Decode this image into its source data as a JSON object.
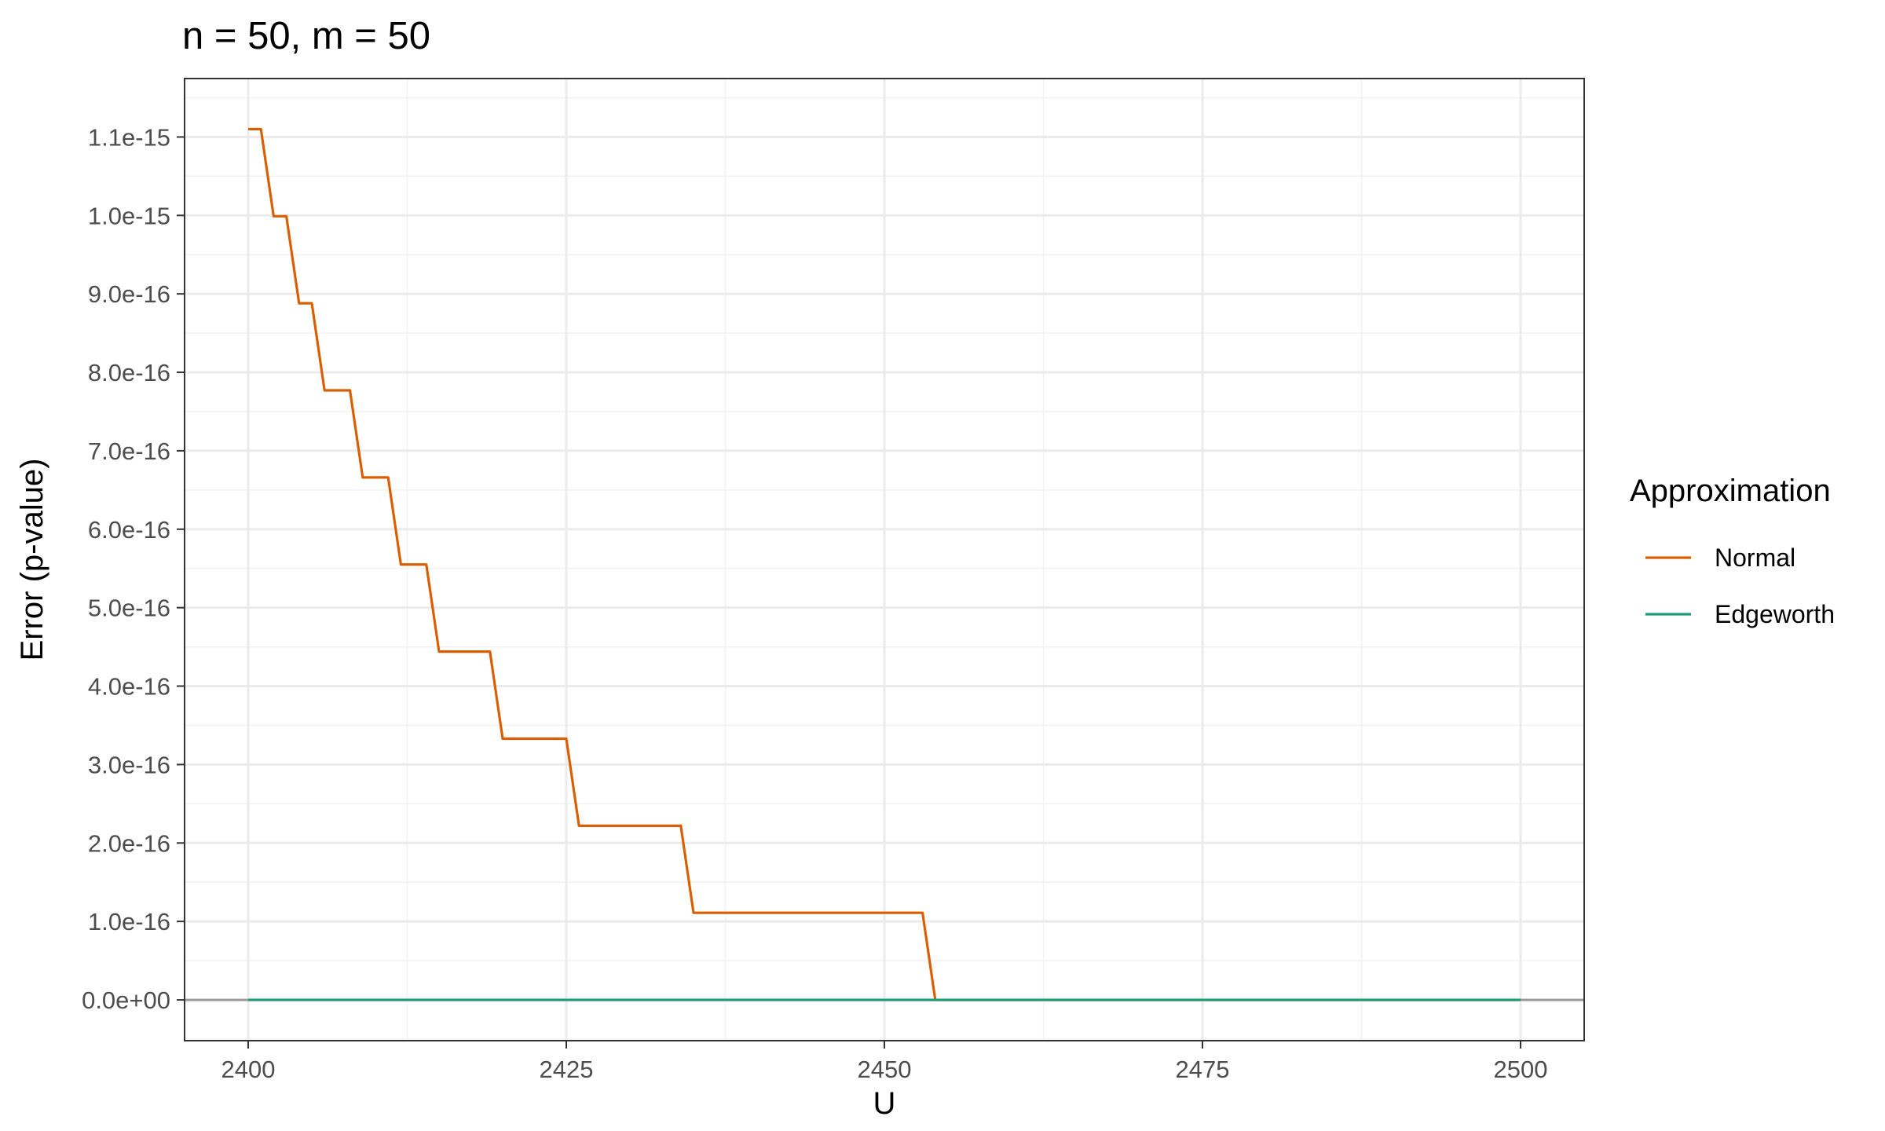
{
  "chart_data": {
    "type": "line",
    "title": "n = 50, m = 50",
    "xlabel": "U",
    "ylabel": "Error (p-value)",
    "xlim": [
      2395,
      2505
    ],
    "ylim": [
      -5.2e-17,
      1.1745e-15
    ],
    "x_ticks": [
      2400,
      2425,
      2450,
      2475,
      2500
    ],
    "x_tick_labels": [
      "2400",
      "2425",
      "2450",
      "2475",
      "2500"
    ],
    "y_ticks": [
      0,
      1e-16,
      2e-16,
      3e-16,
      4e-16,
      5e-16,
      6e-16,
      7e-16,
      8e-16,
      9e-16,
      1e-15,
      1.1e-15
    ],
    "y_tick_labels": [
      "0.0e+00",
      "1.0e-16",
      "2.0e-16",
      "3.0e-16",
      "4.0e-16",
      "5.0e-16",
      "6.0e-16",
      "7.0e-16",
      "8.0e-16",
      "9.0e-16",
      "1.0e-15",
      "1.1e-15"
    ],
    "grid": true,
    "hline": {
      "y": 0,
      "color": "#999999"
    },
    "legend": {
      "title": "Approximation",
      "placement": "right"
    },
    "series": [
      {
        "name": "Normal",
        "color": "#D95F02",
        "points": [
          [
            2400,
            1.11e-15
          ],
          [
            2401,
            1.11e-15
          ],
          [
            2402,
            9.99e-16
          ],
          [
            2403,
            9.99e-16
          ],
          [
            2404,
            8.88e-16
          ],
          [
            2405,
            8.88e-16
          ],
          [
            2406,
            7.77e-16
          ],
          [
            2408,
            7.77e-16
          ],
          [
            2409,
            6.66e-16
          ],
          [
            2411,
            6.66e-16
          ],
          [
            2412,
            5.55e-16
          ],
          [
            2414,
            5.55e-16
          ],
          [
            2415,
            4.44e-16
          ],
          [
            2419,
            4.44e-16
          ],
          [
            2420,
            3.33e-16
          ],
          [
            2425,
            3.33e-16
          ],
          [
            2426,
            2.22e-16
          ],
          [
            2434,
            2.22e-16
          ],
          [
            2435,
            1.11e-16
          ],
          [
            2453,
            1.11e-16
          ],
          [
            2454,
            0
          ],
          [
            2500,
            0
          ]
        ]
      },
      {
        "name": "Edgeworth",
        "color": "#1B9E77",
        "points": [
          [
            2400,
            0
          ],
          [
            2500,
            0
          ]
        ]
      }
    ]
  }
}
